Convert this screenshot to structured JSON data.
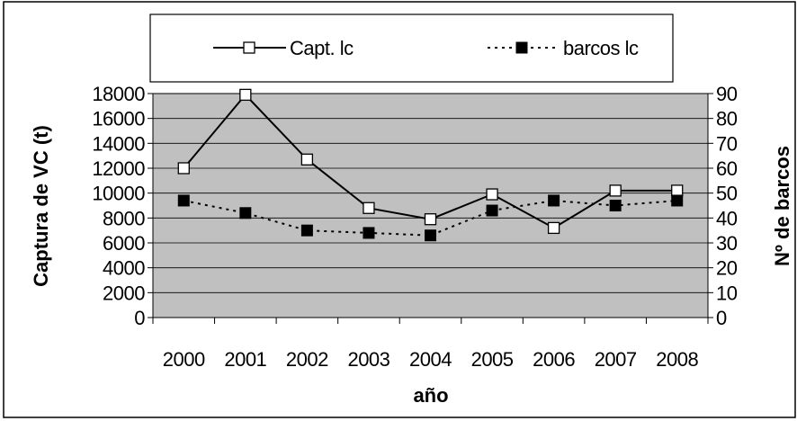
{
  "chart_data": {
    "type": "line",
    "title": "",
    "x": [
      "2000",
      "2001",
      "2002",
      "2003",
      "2004",
      "2005",
      "2006",
      "2007",
      "2008"
    ],
    "series": [
      {
        "name": "Capt. lc",
        "axis": "left",
        "style": "solid",
        "marker": "open-square",
        "values": [
          12000,
          17900,
          12700,
          8800,
          7900,
          9900,
          7200,
          10200,
          10200
        ]
      },
      {
        "name": "barcos lc",
        "axis": "right",
        "style": "dotted",
        "marker": "filled-square",
        "values": [
          47,
          42,
          35,
          34,
          33,
          43,
          47,
          45,
          47
        ]
      }
    ],
    "xlabel": "año",
    "ylabel": "Captura de VC (t)",
    "y2label": "Nº de barcos",
    "ylim": [
      0,
      18000
    ],
    "y2lim": [
      0,
      90
    ],
    "yticks": [
      "18000",
      "16000",
      "14000",
      "12000",
      "10000",
      "8000",
      "6000",
      "4000",
      "2000",
      "0"
    ],
    "y2ticks": [
      "90",
      "80",
      "70",
      "60",
      "50",
      "40",
      "30",
      "20",
      "10",
      "0"
    ],
    "grid": true,
    "legend": "top",
    "colors": {
      "plot_bg": "#c0c0c0",
      "line": "#000000",
      "gridline": "#000000"
    }
  }
}
